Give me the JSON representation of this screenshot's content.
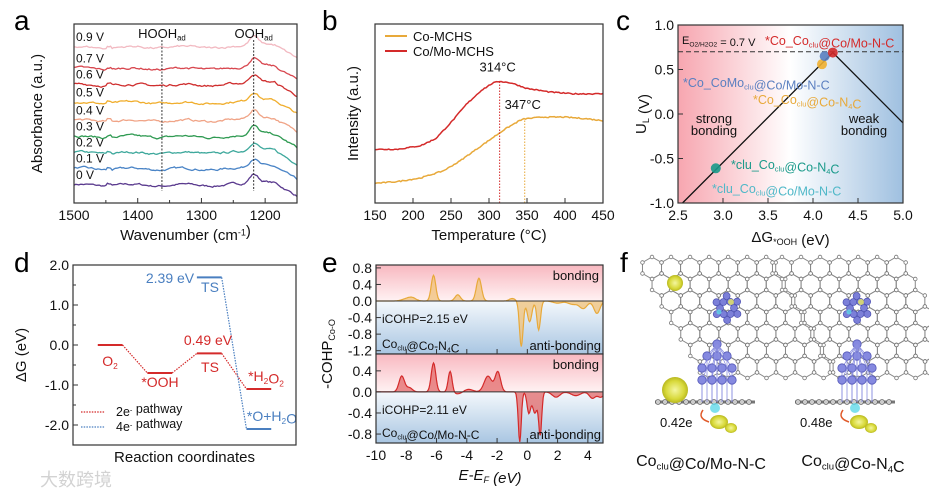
{
  "panels": {
    "a": "a",
    "b": "b",
    "c": "c",
    "d": "d",
    "e": "e",
    "f": "f"
  },
  "watermark": "大数跨境",
  "chart_data": [
    {
      "id": "a",
      "type": "line",
      "xlabel": [
        [
          "Wavenumber (cm",
          ""
        ],
        [
          "-1",
          "sup"
        ],
        [
          ")",
          ""
        ]
      ],
      "ylabel": "Absorbance (a.u.)",
      "xlim": [
        1500,
        1150
      ],
      "ylim": [
        0,
        10
      ],
      "xticks": [
        1500,
        1400,
        1300,
        1200
      ],
      "markers": [
        {
          "x": 1362,
          "label": [
            [
              "HOOH",
              ""
            ],
            [
              "ad",
              "sub"
            ]
          ]
        },
        {
          "x": 1218,
          "label": [
            [
              "OOH",
              ""
            ],
            [
              "ad",
              "sub"
            ]
          ]
        }
      ],
      "series": [
        {
          "name": "0 V",
          "offset": 1.0,
          "color": "#5a3a8e"
        },
        {
          "name": "0.1 V",
          "offset": 1.9,
          "color": "#4a84c6"
        },
        {
          "name": "0.2 V",
          "offset": 2.8,
          "color": "#3ea89c"
        },
        {
          "name": "0.3 V",
          "offset": 3.7,
          "color": "#2f9a52"
        },
        {
          "name": "0.4 V",
          "offset": 4.6,
          "color": "#f0a487"
        },
        {
          "name": "0.5 V",
          "offset": 5.6,
          "color": "#f0ae2e"
        },
        {
          "name": "0.6 V",
          "offset": 6.6,
          "color": "#cf2e2e"
        },
        {
          "name": "0.7 V",
          "offset": 7.5,
          "color": "#d8474f"
        },
        {
          "name": "0.9 V",
          "offset": 8.7,
          "color": "#f2b9c1"
        }
      ]
    },
    {
      "id": "b",
      "type": "line",
      "xlabel": "Temperature (°C)",
      "ylabel": "Intensity (a.u.)",
      "xlim": [
        150,
        450
      ],
      "ylim": [
        0,
        1
      ],
      "xticks": [
        150,
        200,
        250,
        300,
        350,
        400,
        450
      ],
      "series": [
        {
          "name": "Co-MCHS",
          "color": "#e8a93a",
          "x": [
            150,
            180,
            210,
            240,
            260,
            280,
            300,
            320,
            340,
            347,
            370,
            400,
            430,
            450
          ],
          "y": [
            0.11,
            0.12,
            0.14,
            0.18,
            0.23,
            0.29,
            0.35,
            0.41,
            0.46,
            0.47,
            0.48,
            0.48,
            0.47,
            0.46
          ]
        },
        {
          "name": "Co/Mo-MCHS",
          "color": "#d42a2a",
          "x": [
            150,
            180,
            210,
            230,
            250,
            270,
            290,
            305,
            314,
            330,
            350,
            380,
            410,
            450
          ],
          "y": [
            0.3,
            0.3,
            0.32,
            0.36,
            0.45,
            0.55,
            0.63,
            0.67,
            0.68,
            0.67,
            0.64,
            0.62,
            0.61,
            0.61
          ]
        }
      ],
      "annotations": [
        {
          "x": 314,
          "text": "314°C",
          "color": "#d42a2a"
        },
        {
          "x": 347,
          "text": "347°C",
          "color": "#e8a93a"
        }
      ]
    },
    {
      "id": "c",
      "type": "scatter",
      "xlabel": [
        [
          "ΔG",
          ""
        ],
        [
          "*OOH",
          "sub"
        ],
        [
          " (eV)",
          ""
        ]
      ],
      "ylabel": [
        [
          "U",
          ""
        ],
        [
          "L",
          "sub"
        ],
        [
          " (V)",
          ""
        ]
      ],
      "xlim": [
        2.5,
        5.0
      ],
      "ylim": [
        -1.0,
        1.0
      ],
      "xticks": [
        2.5,
        3.0,
        3.5,
        4.0,
        4.5,
        5.0
      ],
      "yticks": [
        -1.0,
        -0.5,
        0.0,
        0.5,
        1.0
      ],
      "reference_line": {
        "y": 0.7,
        "label": [
          [
            "E",
            ""
          ],
          [
            "O2/H2O2",
            "sub"
          ],
          [
            " = 0.7 V",
            ""
          ]
        ]
      },
      "volcano": {
        "x": [
          2.55,
          4.22,
          5.0
        ],
        "y": [
          -1.0,
          0.69,
          -0.1
        ]
      },
      "regions": [
        "strong bonding",
        "weak bonding"
      ],
      "points": [
        {
          "x": 4.22,
          "y": 0.69,
          "color": "#d42a2a",
          "label": [
            [
              "*Co_Co",
              ""
            ],
            [
              "clu",
              "sub"
            ],
            [
              "@Co/Mo-N-C",
              ""
            ]
          ]
        },
        {
          "x": 4.13,
          "y": 0.62,
          "color": "#5a7fc0",
          "label": [
            [
              "*Co_CoMo",
              ""
            ],
            [
              "clu",
              "sub"
            ],
            [
              "@Co/Mo-N-C",
              ""
            ]
          ]
        },
        {
          "x": 4.1,
          "y": 0.58,
          "color": "#e8a93a",
          "label": [
            [
              "*Co_Co",
              ""
            ],
            [
              "clu",
              "sub"
            ],
            [
              "@Co-N",
              ""
            ],
            [
              "4",
              "sub"
            ],
            [
              "C",
              ""
            ]
          ]
        },
        {
          "x": 2.92,
          "y": -0.61,
          "color": "#1a9a8a",
          "label": [
            [
              "*clu_Co",
              ""
            ],
            [
              "clu",
              "sub"
            ],
            [
              "@Co-N",
              ""
            ],
            [
              "4",
              "sub"
            ],
            [
              "C",
              ""
            ]
          ]
        },
        {
          "x": 2.92,
          "y": -0.61,
          "color": "#4fb8c8",
          "label": [
            [
              "*clu_Co",
              ""
            ],
            [
              "clu",
              "sub"
            ],
            [
              "@Co/Mo-N-C",
              ""
            ]
          ]
        }
      ]
    },
    {
      "id": "d",
      "type": "line",
      "xlabel": "Reaction coordinates",
      "ylabel": "ΔG (eV)",
      "ylim": [
        -2.5,
        2.0
      ],
      "yticks": [
        -2.0,
        -1.0,
        0.0,
        1.0,
        2.0
      ],
      "steps": [
        "O2",
        "*OOH",
        "TS",
        "final"
      ],
      "series": [
        {
          "name": [
            [
              "2e",
              ""
            ],
            [
              "-",
              "sup"
            ],
            [
              " pathway",
              ""
            ]
          ],
          "color": "#d42a2a",
          "values": [
            0.0,
            -0.7,
            -0.21,
            -1.1
          ]
        },
        {
          "name": [
            [
              "4e",
              ""
            ],
            [
              "-",
              "sup"
            ],
            [
              " pathway",
              ""
            ]
          ],
          "color": "#4a7fc0",
          "values": [
            0.0,
            -0.7,
            1.69,
            -2.1
          ]
        }
      ],
      "labels": {
        "o2": [
          [
            "O",
            ""
          ],
          [
            "2",
            "sub"
          ]
        ],
        "ooh": "*OOH",
        "ts_2e": "TS",
        "ts_4e": "TS",
        "barrier_2e": "0.49 eV",
        "barrier_4e": "2.39 eV",
        "h2o2": [
          [
            "*H",
            ""
          ],
          [
            "2",
            "sub"
          ],
          [
            "O",
            ""
          ],
          [
            "2",
            "sub"
          ]
        ],
        "o_h2o": [
          [
            "*O+H",
            ""
          ],
          [
            "2",
            "sub"
          ],
          [
            "O",
            ""
          ]
        ]
      }
    },
    {
      "id": "e",
      "type": "area",
      "xlabel": [
        [
          "E-E",
          ""
        ],
        [
          "F",
          "sub"
        ],
        [
          " (eV)",
          ""
        ]
      ],
      "ylabel": [
        [
          "-COHP",
          ""
        ],
        [
          "Co-O",
          "sub"
        ]
      ],
      "xlim": [
        -10,
        5
      ],
      "xticks": [
        -10,
        -8,
        -6,
        -4,
        -2,
        0,
        2,
        4
      ],
      "subplots": [
        {
          "name": [
            [
              "Co",
              ""
            ],
            [
              "clu",
              "sub"
            ],
            [
              "@Co-N",
              ""
            ],
            [
              "4",
              "sub"
            ],
            [
              "C",
              ""
            ]
          ],
          "icohp": "iCOHP=2.15 eV",
          "color": "#e8a93a",
          "fill": "#f0c27a",
          "ylim": [
            -1.28,
            0.87
          ],
          "yticks": [
            -1.2,
            -0.8,
            -0.4,
            0.0,
            0.4,
            0.8
          ],
          "peaks": [
            [
              -8.0,
              0.05,
              0.3
            ],
            [
              -7.6,
              0.07,
              0.25
            ],
            [
              -6.2,
              0.62,
              0.15
            ],
            [
              -4.6,
              0.15,
              0.18
            ],
            [
              -3.2,
              0.55,
              0.17
            ],
            [
              -1.0,
              0.06,
              0.2
            ],
            [
              -0.4,
              -1.1,
              0.12
            ],
            [
              0.15,
              -0.5,
              0.15
            ],
            [
              0.75,
              -0.7,
              0.12
            ],
            [
              2.0,
              -0.05,
              0.3
            ],
            [
              3.0,
              -0.08,
              0.3
            ],
            [
              3.7,
              -0.18,
              0.25
            ],
            [
              4.6,
              -0.3,
              0.2
            ]
          ],
          "regions": [
            "bonding",
            "anti-bonding"
          ]
        },
        {
          "name": [
            [
              "Co",
              ""
            ],
            [
              "clu",
              "sub"
            ],
            [
              "@Co/Mo-N-C",
              ""
            ]
          ],
          "icohp": "iCOHP=2.11 eV",
          "color": "#d42a2a",
          "fill": "#e36a6a",
          "ylim": [
            -0.97,
            0.72
          ],
          "yticks": [
            -0.8,
            -0.4,
            0.0,
            0.4
          ],
          "peaks": [
            [
              -8.3,
              0.3,
              0.18
            ],
            [
              -7.8,
              0.08,
              0.2
            ],
            [
              -6.2,
              0.55,
              0.15
            ],
            [
              -5.1,
              0.4,
              0.13
            ],
            [
              -4.6,
              -0.04,
              0.3
            ],
            [
              -3.9,
              0.05,
              0.3
            ],
            [
              -2.6,
              0.3,
              0.25
            ],
            [
              -1.95,
              0.38,
              0.18
            ],
            [
              -0.5,
              -0.95,
              0.1
            ],
            [
              0.1,
              -0.4,
              0.12
            ],
            [
              0.5,
              -0.4,
              0.15
            ],
            [
              0.85,
              -0.8,
              0.1
            ],
            [
              1.9,
              -0.1,
              0.25
            ],
            [
              3.2,
              -0.07,
              0.3
            ],
            [
              4.3,
              -0.12,
              0.2
            ],
            [
              4.85,
              -0.1,
              0.2
            ]
          ],
          "regions": [
            "bonding",
            "anti-bonding"
          ]
        }
      ]
    },
    {
      "id": "f",
      "type": "structure",
      "structures": [
        {
          "caption": [
            [
              "Co",
              ""
            ],
            [
              "clu",
              "sub"
            ],
            [
              "@Co/Mo-N-C",
              ""
            ]
          ],
          "charge": "0.42e"
        },
        {
          "caption": [
            [
              "Co",
              ""
            ],
            [
              "clu",
              "sub"
            ],
            [
              "@Co-N",
              ""
            ],
            [
              "4",
              "sub"
            ],
            [
              "C",
              ""
            ]
          ],
          "charge": "0.48e"
        }
      ]
    }
  ]
}
